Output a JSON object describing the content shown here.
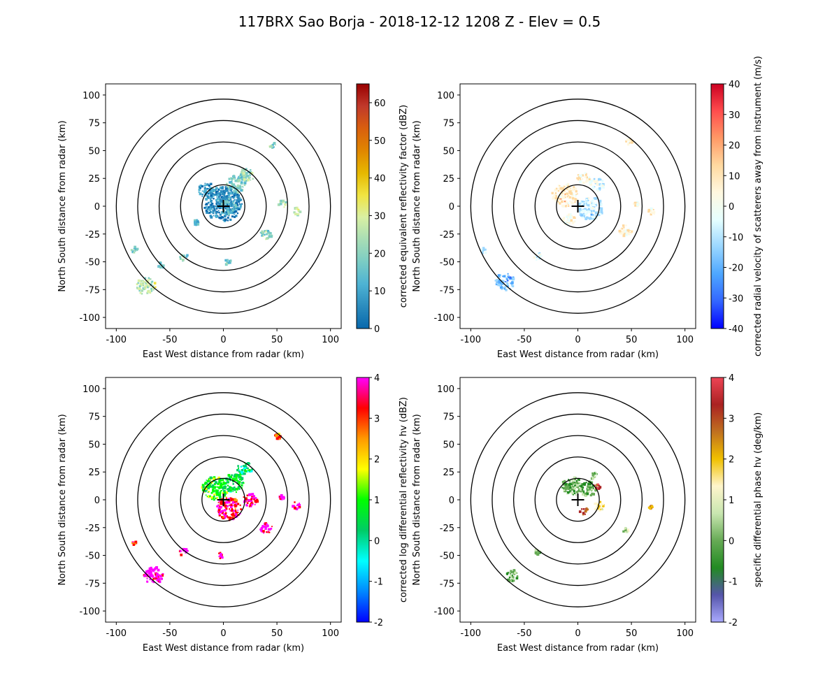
{
  "figure": {
    "suptitle": "117BRX Sao Borja - 2018-12-12 1208 Z -  Elev = 0.5"
  },
  "chart_data": [
    {
      "type": "heatmap",
      "field": "reflectivity",
      "xlabel": "East West distance from radar (km)",
      "ylabel": "North South distance from radar (km)",
      "xlim": [
        -110,
        110
      ],
      "ylim": [
        -110,
        110
      ],
      "xticks": [
        -100,
        -50,
        0,
        50,
        100
      ],
      "yticks": [
        -100,
        -75,
        -50,
        -25,
        0,
        25,
        50,
        75,
        100
      ],
      "range_rings_km": [
        20,
        40,
        60,
        80,
        100
      ],
      "colorbar": {
        "label": "corrected equivalent reflectivity factor (dBZ)",
        "vmin": 0,
        "vmax": 65,
        "ticks": [
          0,
          10,
          20,
          30,
          40,
          50,
          60
        ],
        "colors": [
          "#0868ac",
          "#2b8cbe",
          "#4eb3d3",
          "#7bccc4",
          "#a8ddb5",
          "#d9f0a3",
          "#f0e442",
          "#e6b800",
          "#e08600",
          "#d95f0e",
          "#c0392b",
          "#990000"
        ]
      },
      "echoes": [
        {
          "x": 0,
          "y": 2,
          "r": 18,
          "v": 6
        },
        {
          "x": 3,
          "y": 0,
          "r": 9,
          "v": 14
        },
        {
          "x": 12,
          "y": 20,
          "r": 9,
          "v": 18
        },
        {
          "x": 22,
          "y": 28,
          "r": 7,
          "v": 22
        },
        {
          "x": -15,
          "y": 14,
          "r": 8,
          "v": 10
        },
        {
          "x": 40,
          "y": -25,
          "r": 6,
          "v": 22
        },
        {
          "x": 55,
          "y": 2,
          "r": 4,
          "v": 24
        },
        {
          "x": 68,
          "y": -5,
          "r": 4,
          "v": 26
        },
        {
          "x": 46,
          "y": 55,
          "r": 3,
          "v": 22
        },
        {
          "x": -72,
          "y": -72,
          "r": 9,
          "v": 26
        },
        {
          "x": -37,
          "y": -46,
          "r": 4,
          "v": 22
        },
        {
          "x": -58,
          "y": -53,
          "r": 3,
          "v": 18
        },
        {
          "x": -83,
          "y": -39,
          "r": 3,
          "v": 20
        },
        {
          "x": 4,
          "y": -50,
          "r": 3,
          "v": 18
        },
        {
          "x": -25,
          "y": -15,
          "r": 3,
          "v": 12
        }
      ]
    },
    {
      "type": "heatmap",
      "field": "velocity",
      "xlabel": "East West distance from radar (km)",
      "ylabel": "North South distance from radar (km)",
      "xlim": [
        -110,
        110
      ],
      "ylim": [
        -110,
        110
      ],
      "xticks": [
        -100,
        -50,
        0,
        50,
        100
      ],
      "yticks": [
        -100,
        -75,
        -50,
        -25,
        0,
        25,
        50,
        75,
        100
      ],
      "range_rings_km": [
        20,
        40,
        60,
        80,
        100
      ],
      "colorbar": {
        "label": "corrected radial velocity of scatterers away from instrument (m/s)",
        "vmin": -40,
        "vmax": 40,
        "ticks": [
          -40,
          -30,
          -20,
          -10,
          0,
          10,
          20,
          30,
          40
        ],
        "colors": [
          "#0000ff",
          "#3366ff",
          "#4da6ff",
          "#99d6ff",
          "#e6ffff",
          "#fff8e0",
          "#ffd9a0",
          "#ff9966",
          "#ff4d4d",
          "#cc0022"
        ]
      },
      "echoes": [
        {
          "x": -12,
          "y": 10,
          "r": 12,
          "v": 8
        },
        {
          "x": 12,
          "y": -2,
          "r": 12,
          "v": -8
        },
        {
          "x": 18,
          "y": 20,
          "r": 7,
          "v": -4
        },
        {
          "x": 5,
          "y": 25,
          "r": 6,
          "v": 5
        },
        {
          "x": -8,
          "y": -12,
          "r": 6,
          "v": 4
        },
        {
          "x": 45,
          "y": -22,
          "r": 6,
          "v": 5
        },
        {
          "x": 55,
          "y": 2,
          "r": 3,
          "v": 4
        },
        {
          "x": 70,
          "y": -5,
          "r": 4,
          "v": 6
        },
        {
          "x": -68,
          "y": -68,
          "r": 9,
          "v": -16
        },
        {
          "x": -38,
          "y": -45,
          "r": 4,
          "v": -8
        },
        {
          "x": -88,
          "y": -40,
          "r": 3,
          "v": -6
        },
        {
          "x": 48,
          "y": 58,
          "r": 3,
          "v": 6
        }
      ]
    },
    {
      "type": "heatmap",
      "field": "differential_reflectivity",
      "xlabel": "East West distance from radar (km)",
      "ylabel": "North South distance from radar (km)",
      "xlim": [
        -110,
        110
      ],
      "ylim": [
        -110,
        110
      ],
      "xticks": [
        -100,
        -50,
        0,
        50,
        100
      ],
      "yticks": [
        -100,
        -75,
        -50,
        -25,
        0,
        25,
        50,
        75,
        100
      ],
      "range_rings_km": [
        20,
        40,
        60,
        80,
        100
      ],
      "colorbar": {
        "label": "corrected log differential reflectivity hv (dBZ)",
        "vmin": -2,
        "vmax": 4,
        "ticks": [
          -2,
          -1,
          0,
          1,
          2,
          3,
          4
        ],
        "colors": [
          "#0000ff",
          "#0088ff",
          "#00ffff",
          "#00cc66",
          "#00ff00",
          "#ffff00",
          "#ff9900",
          "#ff0000",
          "#ff00ff"
        ]
      },
      "echoes": [
        {
          "x": -8,
          "y": 10,
          "r": 12,
          "v": 1.0
        },
        {
          "x": 10,
          "y": 15,
          "r": 10,
          "v": 0.6
        },
        {
          "x": 20,
          "y": 28,
          "r": 7,
          "v": 0.3
        },
        {
          "x": 5,
          "y": -8,
          "r": 12,
          "v": 3.2
        },
        {
          "x": 25,
          "y": 0,
          "r": 7,
          "v": 3.5
        },
        {
          "x": 40,
          "y": -25,
          "r": 6,
          "v": 3.6
        },
        {
          "x": 55,
          "y": 2,
          "r": 3,
          "v": 3.8
        },
        {
          "x": 68,
          "y": -5,
          "r": 4,
          "v": 3.7
        },
        {
          "x": -65,
          "y": -68,
          "r": 9,
          "v": 3.8
        },
        {
          "x": -37,
          "y": -47,
          "r": 4,
          "v": 3.4
        },
        {
          "x": -3,
          "y": -50,
          "r": 3,
          "v": 3.6
        },
        {
          "x": 51,
          "y": 57,
          "r": 3,
          "v": 2.6
        },
        {
          "x": -83,
          "y": -39,
          "r": 2,
          "v": 3.0
        }
      ]
    },
    {
      "type": "heatmap",
      "field": "specific_differential_phase",
      "xlabel": "East West distance from radar (km)",
      "ylabel": "North South distance from radar (km)",
      "xlim": [
        -110,
        110
      ],
      "ylim": [
        -110,
        110
      ],
      "xticks": [
        -100,
        -50,
        0,
        50,
        100
      ],
      "yticks": [
        -100,
        -75,
        -50,
        -25,
        0,
        25,
        50,
        75,
        100
      ],
      "range_rings_km": [
        20,
        40,
        60,
        80,
        100
      ],
      "colorbar": {
        "label": "specific differential phase hv (deg/km)",
        "vmin": -2,
        "vmax": 4,
        "ticks": [
          -2,
          -1,
          0,
          1,
          2,
          3,
          4
        ],
        "colors": [
          "#aaaaff",
          "#5555aa",
          "#228b22",
          "#66aa55",
          "#c8e6b0",
          "#fff5cc",
          "#f0c000",
          "#c07020",
          "#aa2222",
          "#ee4455"
        ]
      },
      "echoes": [
        {
          "x": -5,
          "y": 12,
          "r": 10,
          "v": 0.1
        },
        {
          "x": 10,
          "y": 10,
          "r": 8,
          "v": 0.0
        },
        {
          "x": 15,
          "y": 22,
          "r": 4,
          "v": 0.2
        },
        {
          "x": 18,
          "y": 12,
          "r": 3,
          "v": 3.2
        },
        {
          "x": 20,
          "y": -6,
          "r": 5,
          "v": 1.4
        },
        {
          "x": 6,
          "y": -10,
          "r": 4,
          "v": 2.6
        },
        {
          "x": -62,
          "y": -68,
          "r": 6,
          "v": 0.0
        },
        {
          "x": -37,
          "y": -47,
          "r": 3,
          "v": 0.1
        },
        {
          "x": 45,
          "y": -27,
          "r": 3,
          "v": 0.8
        },
        {
          "x": 68,
          "y": -7,
          "r": 2,
          "v": 2.2
        }
      ]
    }
  ]
}
